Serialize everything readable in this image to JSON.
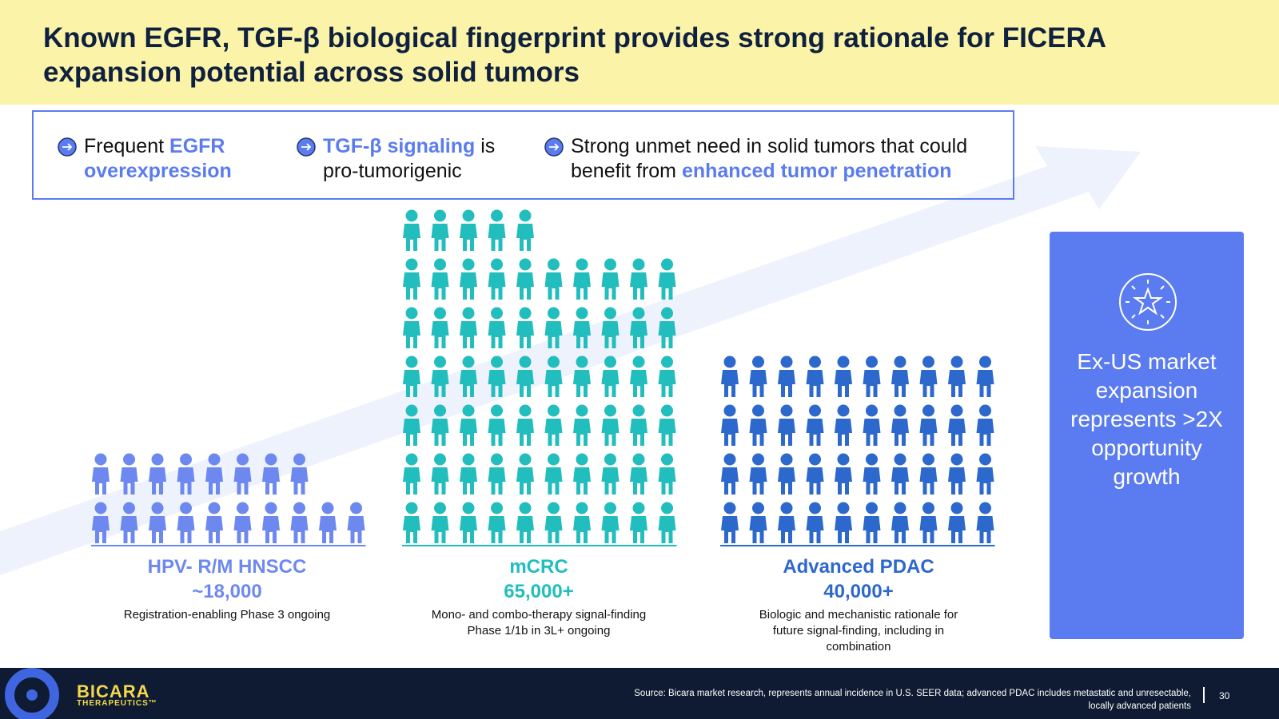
{
  "header": {
    "title": "Known EGFR, TGF-β biological fingerprint provides strong rationale for FICERA expansion potential across solid tumors"
  },
  "bullets": [
    {
      "parts": [
        {
          "text": "Frequent "
        },
        {
          "text": "EGFR overexpression",
          "highlight": true
        }
      ]
    },
    {
      "parts": [
        {
          "text": "TGF-β signaling",
          "highlight": true
        },
        {
          "text": " is pro-tumorigenic"
        }
      ]
    },
    {
      "parts": [
        {
          "text": "Strong unmet need in solid tumors that could benefit from "
        },
        {
          "text": "enhanced tumor penetration",
          "highlight": true
        }
      ]
    }
  ],
  "groups": [
    {
      "name": "HPV- R/M HNSCC",
      "count": "~18,000",
      "note": "Registration-enabling Phase 3 ongoing",
      "color": "#6d89f0"
    },
    {
      "name": "mCRC",
      "count": "65,000+",
      "note": "Mono- and combo-therapy signal-finding Phase 1/1b in 3L+ ongoing",
      "color": "#22bdbd"
    },
    {
      "name": "Advanced PDAC",
      "count": "40,000+",
      "note": "Biologic and mechanistic rationale for future signal-finding, including in combination",
      "color": "#2d68cc"
    }
  ],
  "callout": {
    "text": "Ex-US market expansion represents >2X opportunity growth"
  },
  "footer": {
    "logo": "BICARA",
    "logo_sub": "THERAPEUTICS™",
    "source": "Source: Bicara market research, represents annual incidence in U.S. SEER data; advanced PDAC includes metastatic and unresectable, locally advanced patients",
    "page": "30"
  }
}
